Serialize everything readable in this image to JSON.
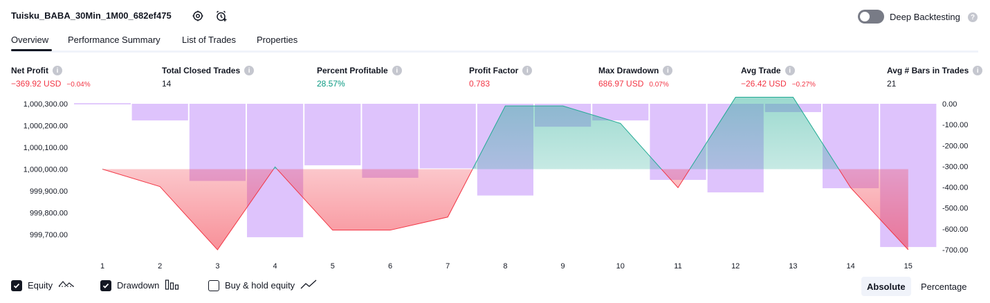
{
  "header": {
    "title": "Tuisku_BABA_30Min_1M00_682ef475",
    "settings_icon": "settings-gear-icon",
    "alert_icon": "alarm-add-icon",
    "deep_backtesting_label": "Deep Backtesting",
    "deep_backtesting_enabled": false,
    "help_glyph": "?"
  },
  "tabs": [
    {
      "label": "Overview",
      "active": true
    },
    {
      "label": "Performance Summary",
      "active": false
    },
    {
      "label": "List of Trades",
      "active": false
    },
    {
      "label": "Properties",
      "active": false
    }
  ],
  "metrics": [
    {
      "label": "Net Profit",
      "value": "−369.92 USD",
      "pct": "−0.04%",
      "color": "#f23645"
    },
    {
      "label": "Total Closed Trades",
      "value": "14",
      "pct": "",
      "color": "#131722"
    },
    {
      "label": "Percent Profitable",
      "value": "28.57%",
      "pct": "",
      "color": "#089981"
    },
    {
      "label": "Profit Factor",
      "value": "0.783",
      "pct": "",
      "color": "#f23645"
    },
    {
      "label": "Max Drawdown",
      "value": "686.97 USD",
      "pct": "0.07%",
      "color": "#f23645"
    },
    {
      "label": "Avg Trade",
      "value": "−26.42 USD",
      "pct": "−0.27%",
      "color": "#f23645"
    },
    {
      "label": "Avg # Bars in Trades",
      "value": "21",
      "pct": "",
      "color": "#131722"
    }
  ],
  "chart_data": {
    "type": "line",
    "x": [
      1,
      2,
      3,
      4,
      5,
      6,
      7,
      8,
      9,
      10,
      11,
      12,
      13,
      14,
      15
    ],
    "y_left_ticks": [
      "1,000,300.00",
      "1,000,200.00",
      "1,000,100.00",
      "1,000,000.00",
      "999,900.00",
      "999,800.00",
      "999,700.00"
    ],
    "y_left_range": [
      999630.08,
      1000300
    ],
    "y_right_ticks": [
      "0.00",
      "-100.00",
      "-200.00",
      "-300.00",
      "-400.00",
      "-500.00",
      "-600.00",
      "-700.00"
    ],
    "y_right_range": [
      -700,
      0
    ],
    "baseline": 1000000,
    "series": [
      {
        "name": "Equity",
        "axis": "left",
        "values": [
          1000000,
          999920,
          999630,
          1000010,
          999720,
          999720,
          999780,
          1000290,
          1000290,
          1000210,
          999915,
          1000330,
          1000330,
          999915,
          999630
        ]
      },
      {
        "name": "Drawdown",
        "type": "bar",
        "axis": "right",
        "values": [
          0,
          -80,
          -370,
          -640,
          -295,
          -355,
          -310,
          -440,
          -110,
          -80,
          -365,
          -425,
          -40,
          -405,
          -687
        ]
      }
    ],
    "colors": {
      "profit_line": "#22ab94",
      "loss_line": "#f23645",
      "drawdown_bar": "#d8b8fc"
    }
  },
  "legend": [
    {
      "label": "Equity",
      "checked": true,
      "icon": "equity-line-icon"
    },
    {
      "label": "Drawdown",
      "checked": true,
      "icon": "drawdown-bars-icon"
    },
    {
      "label": "Buy & hold equity",
      "checked": false,
      "icon": "buy-hold-line-icon"
    }
  ],
  "view_mode": {
    "options": [
      "Absolute",
      "Percentage"
    ],
    "selected": "Absolute"
  }
}
